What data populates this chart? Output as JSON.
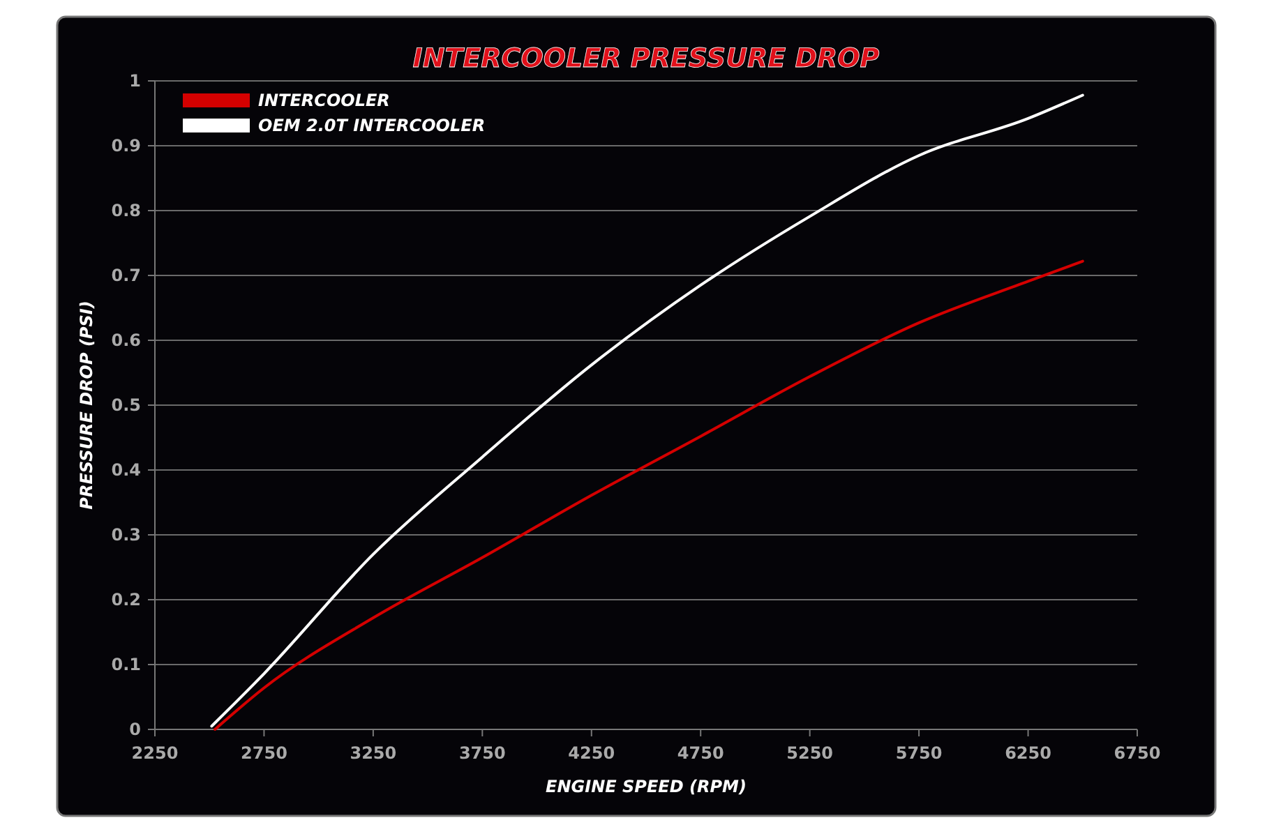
{
  "chart_data": {
    "type": "line",
    "title": "INTERCOOLER PRESSURE DROP",
    "xlabel": "ENGINE SPEED (RPM)",
    "ylabel": "PRESSURE DROP (PSI)",
    "xlim": [
      2250,
      6750
    ],
    "xticks": [
      2250,
      2750,
      3250,
      3750,
      4250,
      4750,
      5250,
      5750,
      6250,
      6750
    ],
    "ylim": [
      0,
      1
    ],
    "yticks": [
      0,
      0.1,
      0.2,
      0.3,
      0.4,
      0.5,
      0.6,
      0.7,
      0.8,
      0.9,
      1
    ],
    "grid": "y",
    "legend": "top left",
    "marker": "none",
    "line_style": "solid",
    "series": [
      {
        "name": "INTERCOOLER",
        "color": "#d40000",
        "x": [
          2525,
          2750,
          3250,
          3750,
          4250,
          4750,
          5250,
          5750,
          6250,
          6500
        ],
        "values": [
          0,
          0.064,
          0.172,
          0.265,
          0.361,
          0.452,
          0.544,
          0.627,
          0.691,
          0.722
        ]
      },
      {
        "name": "OEM 2.0T INTERCOOLER",
        "color": "#ffffff",
        "x": [
          2510,
          2750,
          3250,
          3750,
          4250,
          4750,
          5250,
          5750,
          6250,
          6500
        ],
        "values": [
          0.005,
          0.086,
          0.27,
          0.42,
          0.562,
          0.685,
          0.791,
          0.885,
          0.942,
          0.978
        ]
      }
    ]
  }
}
